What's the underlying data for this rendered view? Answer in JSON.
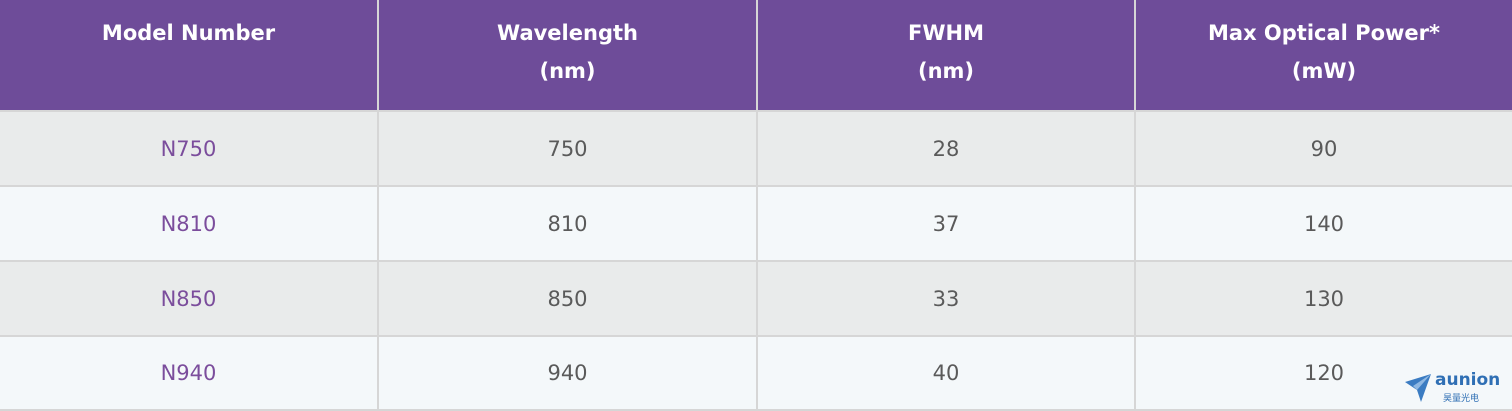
{
  "table": {
    "header": [
      [
        "Model Number"
      ],
      [
        "Wavelength",
        "(nm)"
      ],
      [
        "FWHM",
        "(nm)"
      ],
      [
        "Max Optical Power*",
        "(mW)"
      ]
    ],
    "rows": [
      [
        "N750",
        750,
        28,
        90
      ],
      [
        "N810",
        810,
        37,
        140
      ],
      [
        "N850",
        850,
        33,
        130
      ],
      [
        "N940",
        940,
        40,
        120
      ]
    ]
  },
  "watermark": {
    "brand": "aunion",
    "subtitle": "昊量光电"
  }
}
